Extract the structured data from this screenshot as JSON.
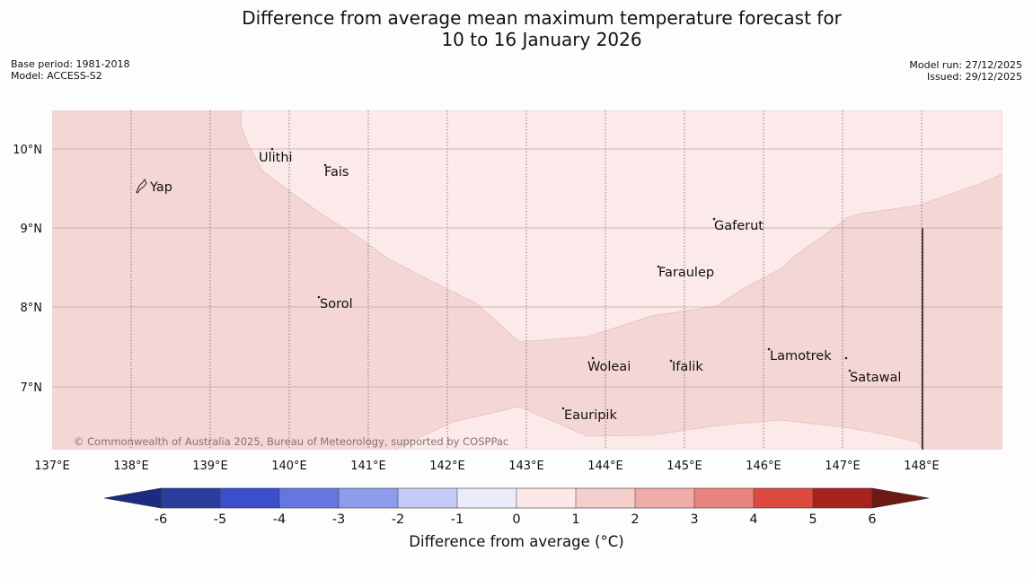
{
  "title": {
    "line1": "Difference from average mean maximum temperature forecast for",
    "line2": "10 to 16 January 2026"
  },
  "meta": {
    "base_period": "Base period: 1981-2018",
    "model": "Model: ACCESS-S2",
    "model_run": "Model run: 27/12/2025",
    "issued": "Issued: 29/12/2025"
  },
  "map": {
    "lon_ticks": [
      "137°E",
      "138°E",
      "139°E",
      "140°E",
      "141°E",
      "142°E",
      "143°E",
      "144°E",
      "145°E",
      "146°E",
      "147°E",
      "148°E"
    ],
    "lat_ticks": [
      "10°N",
      "9°N",
      "8°N",
      "7°N"
    ],
    "places": [
      {
        "name": "Yap"
      },
      {
        "name": "Ulithi"
      },
      {
        "name": "Fais"
      },
      {
        "name": "Gaferut"
      },
      {
        "name": "Faraulep"
      },
      {
        "name": "Sorol"
      },
      {
        "name": "Lamotrek"
      },
      {
        "name": "Woleai"
      },
      {
        "name": "Ifalik"
      },
      {
        "name": "Satawal"
      },
      {
        "name": "Eauripik"
      }
    ],
    "copyright": "© Commonwealth of Australia 2025, Bureau of Meteorology, supported by COSPPac",
    "region_colors": {
      "one_to_two": "#f4d6d4",
      "zero_to_one": "#fbeae9"
    }
  },
  "colorbar": {
    "ticks": [
      "-6",
      "-5",
      "-4",
      "-3",
      "-2",
      "-1",
      "0",
      "1",
      "2",
      "3",
      "4",
      "5",
      "6"
    ],
    "colors": [
      "#2a3c9c",
      "#3a4fcc",
      "#6477e0",
      "#8e9cec",
      "#c4cbf6",
      "#eaecfc",
      "#fce8e8",
      "#f4cfcc",
      "#efaca8",
      "#e9837e",
      "#dc4a40",
      "#a8231e"
    ],
    "under_color": "#1c2a80",
    "over_color": "#6e1a14",
    "label": "Difference from average (°C)"
  }
}
